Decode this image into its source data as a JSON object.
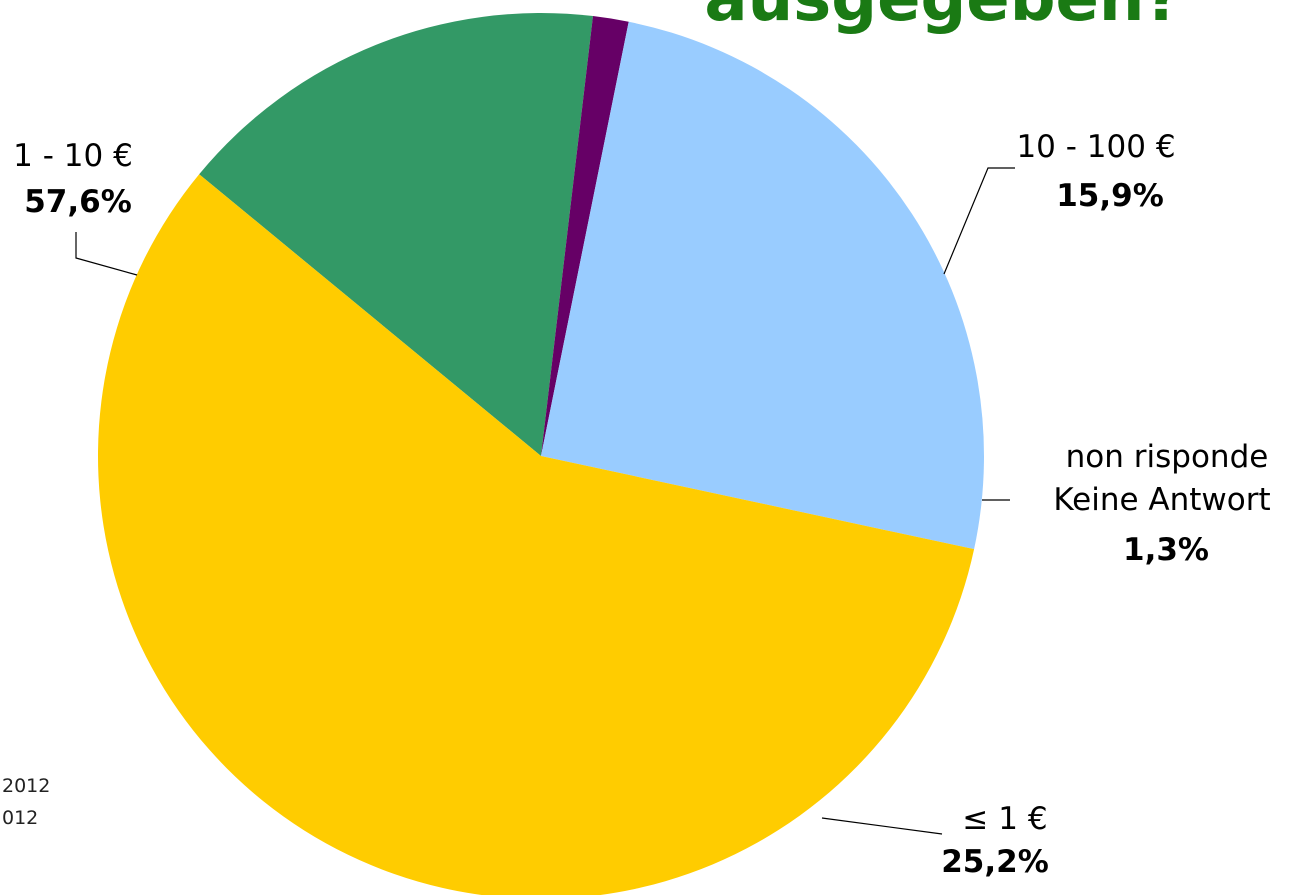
{
  "title_fragment": "ausgegeben?",
  "colors": {
    "title": "#1a7a14",
    "slice_1_10": "#FFCC00",
    "slice_10_100": "#339966",
    "slice_no_answer": "#660066",
    "slice_le_1": "#99CCFF"
  },
  "source_fragments": [
    "2012",
    "012"
  ],
  "chart_data": {
    "type": "pie",
    "start_angle_deg": 140.5,
    "direction": "clockwise",
    "slices": [
      {
        "label": "10 - 100 €",
        "label_line2": "",
        "value": 15.9,
        "value_label": "15,9%",
        "color": "#339966"
      },
      {
        "label": "non risponde",
        "label_line2": "Keine Antwort",
        "value": 1.3,
        "value_label": "1,3%",
        "color": "#660066"
      },
      {
        "label": "≤ 1 €",
        "label_line2": "",
        "value": 25.2,
        "value_label": "25,2%",
        "color": "#99CCFF"
      },
      {
        "label": "1 - 10 €",
        "label_line2": "",
        "value": 57.6,
        "value_label": "57,6%",
        "color": "#FFCC00"
      }
    ]
  }
}
